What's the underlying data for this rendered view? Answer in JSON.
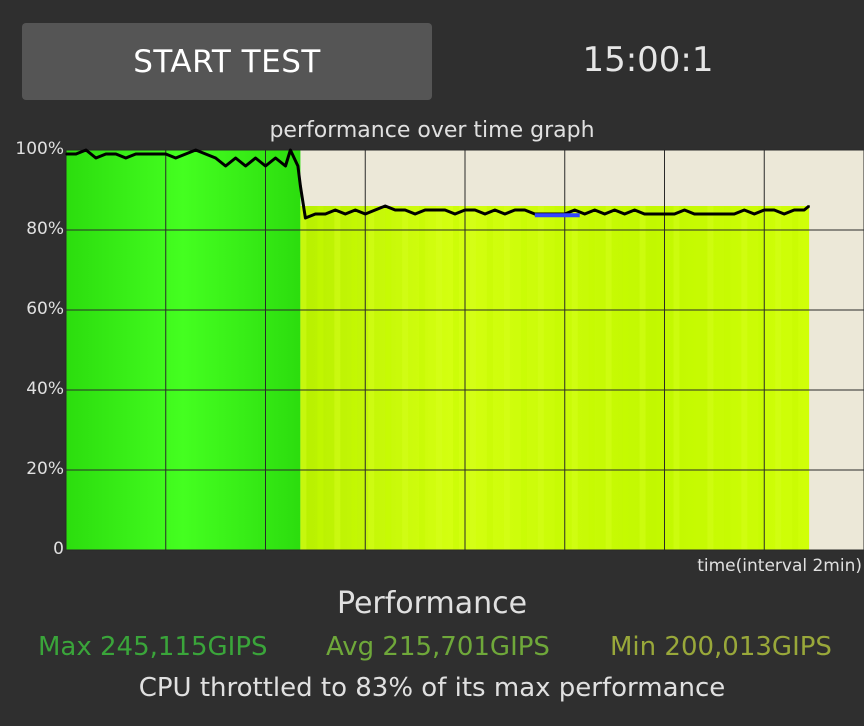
{
  "header": {
    "start_button_label": "START TEST",
    "timer": "15:00:1"
  },
  "graph": {
    "title": "performance over time graph",
    "x_label": "time(interval 2min)",
    "y_ticks": [
      "100%",
      "80%",
      "60%",
      "40%",
      "20%",
      "0"
    ]
  },
  "chart_data": {
    "type": "line",
    "title": "performance over time graph",
    "xlabel": "time(interval 2min)",
    "ylabel": "",
    "ylim": [
      0,
      100
    ],
    "xlim_minutes": [
      0,
      16
    ],
    "grid": true,
    "colors": {
      "background": "#ece8d8",
      "unthrottled_fill": "#33ee11",
      "throttled_fill": "#ccff00",
      "line": "#000000",
      "marker": "#3344ff"
    },
    "series": [
      {
        "values": [
          {
            "x": 0.0,
            "y": 99
          },
          {
            "x": 0.2,
            "y": 99
          },
          {
            "x": 0.4,
            "y": 100
          },
          {
            "x": 0.6,
            "y": 98
          },
          {
            "x": 0.8,
            "y": 99
          },
          {
            "x": 1.0,
            "y": 99
          },
          {
            "x": 1.2,
            "y": 98
          },
          {
            "x": 1.4,
            "y": 99
          },
          {
            "x": 1.6,
            "y": 99
          },
          {
            "x": 1.8,
            "y": 99
          },
          {
            "x": 2.0,
            "y": 99
          },
          {
            "x": 2.2,
            "y": 98
          },
          {
            "x": 2.4,
            "y": 99
          },
          {
            "x": 2.6,
            "y": 100
          },
          {
            "x": 2.8,
            "y": 99
          },
          {
            "x": 3.0,
            "y": 98
          },
          {
            "x": 3.2,
            "y": 96
          },
          {
            "x": 3.4,
            "y": 98
          },
          {
            "x": 3.6,
            "y": 96
          },
          {
            "x": 3.8,
            "y": 98
          },
          {
            "x": 4.0,
            "y": 96
          },
          {
            "x": 4.2,
            "y": 98
          },
          {
            "x": 4.4,
            "y": 96
          },
          {
            "x": 4.5,
            "y": 100
          },
          {
            "x": 4.65,
            "y": 96
          },
          {
            "x": 4.7,
            "y": 91
          },
          {
            "x": 4.8,
            "y": 83
          },
          {
            "x": 5.0,
            "y": 84
          },
          {
            "x": 5.2,
            "y": 84
          },
          {
            "x": 5.4,
            "y": 85
          },
          {
            "x": 5.6,
            "y": 84
          },
          {
            "x": 5.8,
            "y": 85
          },
          {
            "x": 6.0,
            "y": 84
          },
          {
            "x": 6.2,
            "y": 85
          },
          {
            "x": 6.4,
            "y": 86
          },
          {
            "x": 6.6,
            "y": 85
          },
          {
            "x": 6.8,
            "y": 85
          },
          {
            "x": 7.0,
            "y": 84
          },
          {
            "x": 7.2,
            "y": 85
          },
          {
            "x": 7.4,
            "y": 85
          },
          {
            "x": 7.6,
            "y": 85
          },
          {
            "x": 7.8,
            "y": 84
          },
          {
            "x": 8.0,
            "y": 85
          },
          {
            "x": 8.2,
            "y": 85
          },
          {
            "x": 8.4,
            "y": 84
          },
          {
            "x": 8.6,
            "y": 85
          },
          {
            "x": 8.8,
            "y": 84
          },
          {
            "x": 9.0,
            "y": 85
          },
          {
            "x": 9.2,
            "y": 85
          },
          {
            "x": 9.4,
            "y": 84
          },
          {
            "x": 9.6,
            "y": 84
          },
          {
            "x": 9.8,
            "y": 84
          },
          {
            "x": 10.0,
            "y": 84
          },
          {
            "x": 10.2,
            "y": 85
          },
          {
            "x": 10.4,
            "y": 84
          },
          {
            "x": 10.6,
            "y": 85
          },
          {
            "x": 10.8,
            "y": 84
          },
          {
            "x": 11.0,
            "y": 85
          },
          {
            "x": 11.2,
            "y": 84
          },
          {
            "x": 11.4,
            "y": 85
          },
          {
            "x": 11.6,
            "y": 84
          },
          {
            "x": 11.8,
            "y": 84
          },
          {
            "x": 12.0,
            "y": 84
          },
          {
            "x": 12.2,
            "y": 84
          },
          {
            "x": 12.4,
            "y": 85
          },
          {
            "x": 12.6,
            "y": 84
          },
          {
            "x": 12.8,
            "y": 84
          },
          {
            "x": 13.0,
            "y": 84
          },
          {
            "x": 13.2,
            "y": 84
          },
          {
            "x": 13.4,
            "y": 84
          },
          {
            "x": 13.6,
            "y": 85
          },
          {
            "x": 13.8,
            "y": 84
          },
          {
            "x": 14.0,
            "y": 85
          },
          {
            "x": 14.2,
            "y": 85
          },
          {
            "x": 14.4,
            "y": 84
          },
          {
            "x": 14.6,
            "y": 85
          },
          {
            "x": 14.8,
            "y": 85
          },
          {
            "x": 14.9,
            "y": 86
          }
        ]
      }
    ],
    "throttle_start_minutes": 4.7,
    "marker_segment": {
      "x_start": 9.4,
      "x_end": 10.3,
      "y": 83.7
    }
  },
  "performance": {
    "title": "Performance",
    "max": "Max 245,115GIPS",
    "avg": "Avg 215,701GIPS",
    "min": "Min 200,013GIPS",
    "summary": "CPU throttled to 83% of its max performance"
  }
}
